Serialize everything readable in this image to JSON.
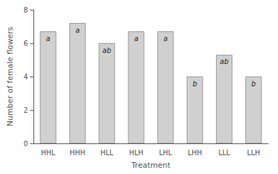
{
  "chart_data": {
    "type": "bar",
    "categories": [
      "HHL",
      "HHH",
      "HLL",
      "HLH",
      "LHL",
      "LHH",
      "LLL",
      "LLH"
    ],
    "values": [
      6.7,
      7.2,
      6.0,
      6.7,
      6.7,
      4.0,
      5.3,
      4.0
    ],
    "annotations": [
      "a",
      "a",
      "ab",
      "a",
      "a",
      "b",
      "ab",
      "b"
    ],
    "color": "#d0d0d0",
    "xlabel": "Treatment",
    "ylabel": "Number of female flowers",
    "ylim": [
      0,
      8
    ],
    "yticks": [
      0,
      2,
      4,
      6,
      8
    ],
    "grid": false
  }
}
